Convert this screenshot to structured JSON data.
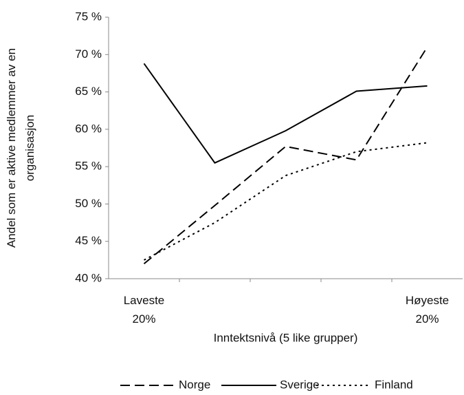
{
  "chart_data": {
    "type": "line",
    "y_label": "Andel som er aktive medlemmer av en organisasjon",
    "x_label": "Inntektsnivå (5 like grupper)",
    "categories": [
      "Laveste 20%",
      null,
      null,
      null,
      "Høyeste 20%"
    ],
    "series": [
      {
        "name": "Norge",
        "color": "#000000",
        "dash": "14,7",
        "values": [
          42.0,
          49.8,
          57.7,
          55.9,
          71.0
        ]
      },
      {
        "name": "Sverige",
        "color": "#000000",
        "dash": "none",
        "values": [
          68.8,
          55.5,
          59.8,
          65.1,
          65.8
        ]
      },
      {
        "name": "Finland",
        "color": "#000000",
        "dash": "3,5",
        "values": [
          42.5,
          47.5,
          53.8,
          57.0,
          58.2
        ]
      }
    ],
    "ylim": [
      40,
      75
    ],
    "yticks": [
      {
        "value": 40,
        "label": "40 %"
      },
      {
        "value": 45,
        "label": "45 %"
      },
      {
        "value": 50,
        "label": "50 %"
      },
      {
        "value": 55,
        "label": "55 %"
      },
      {
        "value": 60,
        "label": "60 %"
      },
      {
        "value": 65,
        "label": "65 %"
      },
      {
        "value": 70,
        "label": "70 %"
      },
      {
        "value": 75,
        "label": "75 %"
      }
    ],
    "grid": false,
    "legend": "bottom"
  }
}
